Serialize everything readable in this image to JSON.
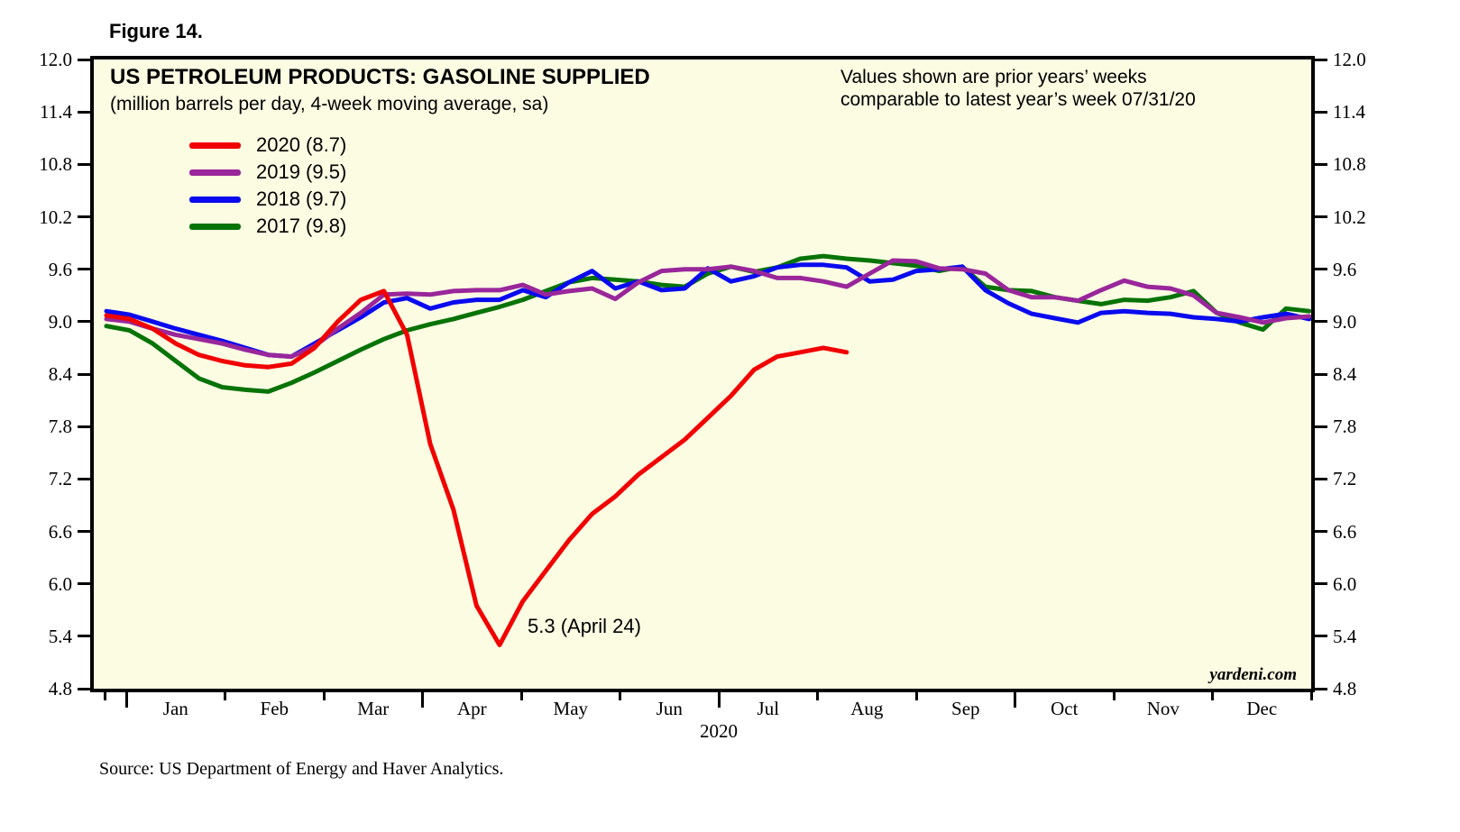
{
  "figure_label": "Figure 14.",
  "title": "US PETROLEUM PRODUCTS: GASOLINE SUPPLIED",
  "subtitle": "(million barrels per day, 4-week moving average, sa)",
  "note": "Values shown are prior years’ weeks\ncomparable to latest year’s week 07/31/20",
  "annotation_trough": "5.3 (April 24)",
  "watermark": "yardeni.com",
  "source": "Source: US Department of Energy and Haver Analytics.",
  "x_axis_year_label": "2020",
  "chart_data": {
    "type": "line",
    "title": "US PETROLEUM PRODUCTS: GASOLINE SUPPLIED",
    "subtitle": "(million barrels per day, 4-week moving average, sa)",
    "ylabel": "million barrels per day",
    "x_unit": "weekly data, Jan–Dec (weeks aligned to 2020 calendar)",
    "ylim": [
      4.8,
      12.0
    ],
    "ytick_step": 0.6,
    "yticks": [
      "12.0",
      "11.4",
      "10.8",
      "10.2",
      "9.6",
      "9.0",
      "8.4",
      "7.8",
      "7.2",
      "6.6",
      "6.0",
      "5.4",
      "4.8"
    ],
    "months": [
      "Jan",
      "Feb",
      "Mar",
      "Apr",
      "May",
      "Jun",
      "Jul",
      "Aug",
      "Sep",
      "Oct",
      "Nov",
      "Dec"
    ],
    "grid": false,
    "legend_position": "top-left",
    "background_color": "#FCFCE3",
    "annotation": {
      "text": "5.3 (April 24)",
      "series": "2020",
      "week": 17,
      "value": 5.3
    },
    "series": [
      {
        "name": "2020 (8.7)",
        "year": "2020",
        "latest_value": 8.7,
        "color": "#F10000",
        "values": [
          9.07,
          9.03,
          8.92,
          8.75,
          8.62,
          8.55,
          8.5,
          8.48,
          8.52,
          8.7,
          9.0,
          9.25,
          9.35,
          8.85,
          7.6,
          6.85,
          5.75,
          5.3,
          5.8,
          6.15,
          6.5,
          6.8,
          7.0,
          7.25,
          7.45,
          7.65,
          7.9,
          8.15,
          8.45,
          8.6,
          8.65,
          8.7,
          8.65
        ]
      },
      {
        "name": "2019 (9.5)",
        "year": "2019",
        "latest_value": 9.5,
        "color": "#99269B",
        "values": [
          9.03,
          9.0,
          8.92,
          8.85,
          8.8,
          8.75,
          8.68,
          8.62,
          8.6,
          8.72,
          8.92,
          9.1,
          9.31,
          9.32,
          9.31,
          9.35,
          9.36,
          9.36,
          9.42,
          9.31,
          9.35,
          9.38,
          9.26,
          9.45,
          9.58,
          9.6,
          9.6,
          9.63,
          9.58,
          9.5,
          9.5,
          9.46,
          9.4,
          9.55,
          9.7,
          9.69,
          9.61,
          9.6,
          9.55,
          9.36,
          9.28,
          9.28,
          9.24,
          9.36,
          9.47,
          9.4,
          9.38,
          9.3,
          9.1,
          9.05,
          8.99,
          9.04,
          9.06
        ]
      },
      {
        "name": "2018 (9.7)",
        "year": "2018",
        "latest_value": 9.7,
        "color": "#0A0AEF",
        "values": [
          9.12,
          9.08,
          9.0,
          8.92,
          8.85,
          8.78,
          8.7,
          8.62,
          8.6,
          8.75,
          8.9,
          9.05,
          9.22,
          9.27,
          9.15,
          9.22,
          9.25,
          9.25,
          9.36,
          9.28,
          9.45,
          9.58,
          9.38,
          9.46,
          9.36,
          9.38,
          9.61,
          9.46,
          9.52,
          9.62,
          9.65,
          9.65,
          9.62,
          9.46,
          9.48,
          9.58,
          9.6,
          9.63,
          9.36,
          9.21,
          9.09,
          9.04,
          8.99,
          9.1,
          9.12,
          9.1,
          9.09,
          9.05,
          9.03,
          9.0,
          9.05,
          9.09,
          9.03
        ]
      },
      {
        "name": "2017 (9.8)",
        "year": "2017",
        "latest_value": 9.8,
        "color": "#077307",
        "values": [
          8.95,
          8.9,
          8.75,
          8.55,
          8.35,
          8.25,
          8.22,
          8.2,
          8.3,
          8.42,
          8.55,
          8.68,
          8.8,
          8.9,
          8.97,
          9.03,
          9.1,
          9.17,
          9.25,
          9.35,
          9.45,
          9.5,
          9.48,
          9.46,
          9.42,
          9.4,
          9.55,
          9.63,
          9.57,
          9.62,
          9.72,
          9.75,
          9.72,
          9.7,
          9.67,
          9.64,
          9.58,
          9.63,
          9.4,
          9.36,
          9.35,
          9.28,
          9.24,
          9.2,
          9.25,
          9.24,
          9.28,
          9.35,
          9.1,
          8.99,
          8.91,
          9.15,
          9.12
        ]
      }
    ]
  }
}
